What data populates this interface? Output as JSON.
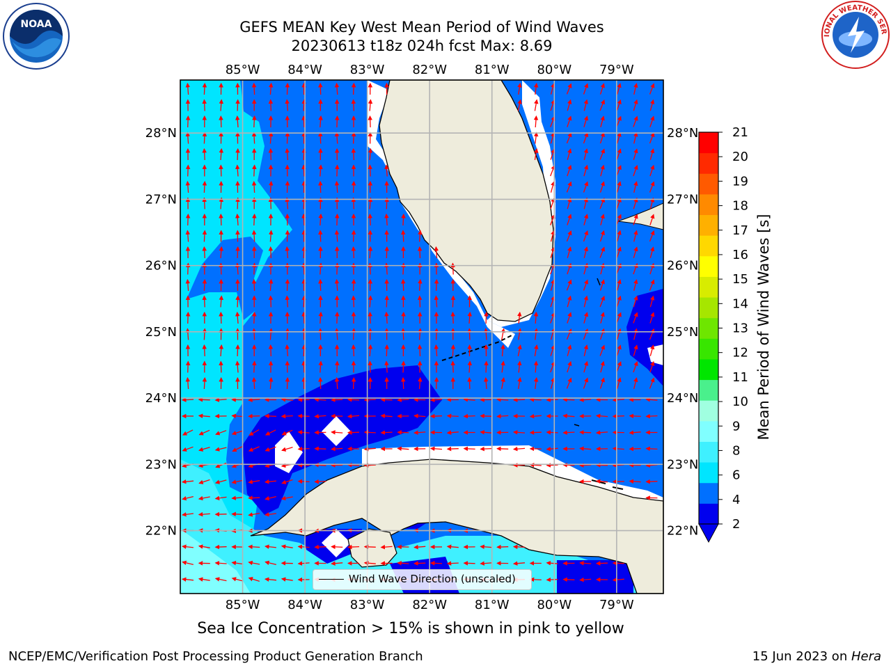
{
  "title": {
    "line1": "GEFS MEAN Key West Mean Period of Wind Waves",
    "line2": "20230613 t18z 024h fcst   Max: 8.69"
  },
  "logos": {
    "left": "NOAA",
    "right": "NATIONAL WEATHER SERVICE"
  },
  "map": {
    "lon_labels": [
      "85°W",
      "84°W",
      "83°W",
      "82°W",
      "81°W",
      "80°W",
      "79°W"
    ],
    "lat_labels": [
      "28°N",
      "27°N",
      "26°N",
      "25°N",
      "24°N",
      "23°N",
      "22°N"
    ],
    "lon_range": [
      -86.0,
      -78.25
    ],
    "lat_range": [
      21.05,
      28.8
    ],
    "land_color": "#eeecdc",
    "arrow_color": "#ff0000"
  },
  "legend": {
    "label": "Wind Wave Direction (unscaled)"
  },
  "colorbar": {
    "title": "Mean Period of Wind Waves [s]",
    "ticks": [
      "2",
      "4",
      "6",
      "8",
      "9",
      "10",
      "11",
      "12",
      "13",
      "14",
      "15",
      "16",
      "17",
      "18",
      "19",
      "20",
      "21"
    ],
    "colors": [
      "#0000ee",
      "#0070ff",
      "#00e5ff",
      "#3ff0ff",
      "#80ffff",
      "#a0ffe0",
      "#4af08c",
      "#00e600",
      "#38e600",
      "#6ee600",
      "#a6e600",
      "#d8ec00",
      "#ffff00",
      "#ffd800",
      "#ffb000",
      "#ff8a00",
      "#ff5a00",
      "#ff2a00",
      "#ff0000"
    ]
  },
  "notes": {
    "sea_ice": "Sea Ice Concentration > 15% is shown in pink to yellow"
  },
  "credits": {
    "left": "NCEP/EMC/Verification Post Processing Product Generation Branch",
    "right_date": "15 Jun 2023 on ",
    "right_host": "Hera"
  }
}
